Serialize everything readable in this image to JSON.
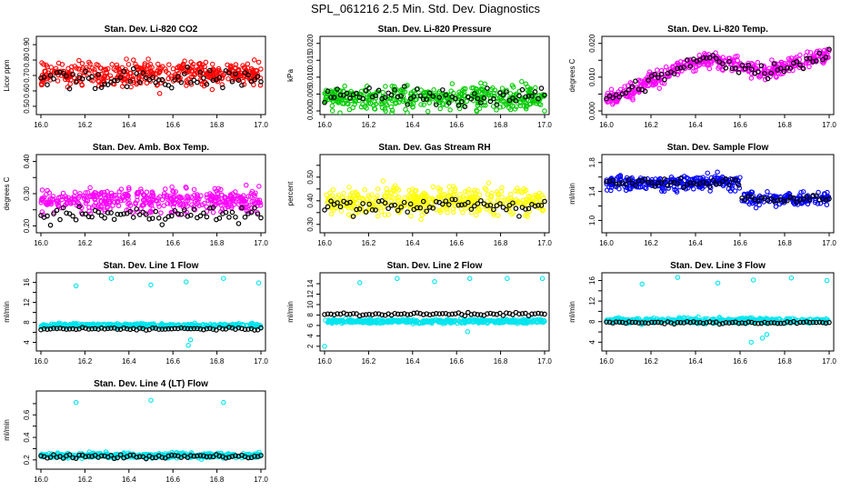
{
  "title": "SPL_061216  2.5 Min. Std. Dev. Diagnostics",
  "chart_data": [
    {
      "type": "scatter",
      "title": "Stan. Dev. Li-820 CO2",
      "ylabel": "Licor ppm",
      "color": "#ff0000",
      "xlim": [
        16.0,
        17.0
      ],
      "ylim": [
        0.47,
        0.93
      ],
      "xticks": [
        16.0,
        16.2,
        16.4,
        16.6,
        16.8,
        17.0
      ],
      "yticks": [
        0.5,
        0.6,
        0.7,
        0.8,
        0.9
      ],
      "yticklabels": [
        "0.50",
        "0.60",
        "0.70",
        "0.80",
        "0.90"
      ],
      "black_mean": 0.68,
      "black_sd": 0.06,
      "color_mean": 0.71,
      "color_sd": 0.07,
      "trend": 0.0
    },
    {
      "type": "scatter",
      "title": "Stan. Dev. Li-820 Pressure",
      "ylabel": "kPa",
      "color": "#00cc00",
      "xlim": [
        16.0,
        17.0
      ],
      "ylim": [
        0.0,
        0.021
      ],
      "xticks": [
        16.0,
        16.2,
        16.4,
        16.6,
        16.8,
        17.0
      ],
      "yticks": [
        0.0,
        0.005,
        0.01,
        0.015,
        0.02
      ],
      "yticklabels": [
        "0.000",
        "0.005",
        "0.010",
        "0.015",
        "0.020"
      ],
      "black_mean": 0.0045,
      "black_sd": 0.002,
      "color_mean": 0.004,
      "color_sd": 0.003,
      "trend": 0.0
    },
    {
      "type": "scatter",
      "title": "Stan. Dev. Li-820 Temp.",
      "ylabel": "degrees C",
      "color": "#ff00ff",
      "xlim": [
        16.0,
        17.0
      ],
      "ylim": [
        0.0,
        0.021
      ],
      "xticks": [
        16.0,
        16.2,
        16.4,
        16.6,
        16.8,
        17.0
      ],
      "yticks": [
        0.0,
        0.005,
        0.01,
        0.015,
        0.02
      ],
      "yticklabels": [
        "0.000",
        "",
        "0.010",
        "",
        "0.020"
      ],
      "black_mean": 0.012,
      "black_sd": 0.002,
      "color_mean": 0.012,
      "color_sd": 0.002,
      "trend": 1.0
    },
    {
      "type": "scatter",
      "title": "Stan. Dev. Amb. Box Temp.",
      "ylabel": "degrees C",
      "color": "#ff00ff",
      "xlim": [
        16.0,
        17.0
      ],
      "ylim": [
        0.19,
        0.41
      ],
      "xticks": [
        16.0,
        16.2,
        16.4,
        16.6,
        16.8,
        17.0
      ],
      "yticks": [
        0.2,
        0.25,
        0.3,
        0.35,
        0.4
      ],
      "yticklabels": [
        "0.20",
        "",
        "0.30",
        "",
        "0.40"
      ],
      "black_mean": 0.235,
      "black_sd": 0.02,
      "color_mean": 0.28,
      "color_sd": 0.03,
      "trend": 0.0
    },
    {
      "type": "scatter",
      "title": "Stan. Dev. Gas Stream RH",
      "ylabel": "percent",
      "color": "#ffff00",
      "xlim": [
        16.0,
        17.0
      ],
      "ylim": [
        0.28,
        0.58
      ],
      "xticks": [
        16.0,
        16.2,
        16.4,
        16.6,
        16.8,
        17.0
      ],
      "yticks": [
        0.3,
        0.35,
        0.4,
        0.45,
        0.5,
        0.55
      ],
      "yticklabels": [
        "0.30",
        "",
        "0.40",
        "",
        "0.50",
        ""
      ],
      "black_mean": 0.38,
      "black_sd": 0.03,
      "color_mean": 0.4,
      "color_sd": 0.05,
      "trend": 0.0
    },
    {
      "type": "scatter",
      "title": "Stan. Dev. Sample Flow",
      "ylabel": "ml/min",
      "color": "#0000ff",
      "xlim": [
        16.0,
        17.0
      ],
      "ylim": [
        0.88,
        1.86
      ],
      "xticks": [
        16.0,
        16.2,
        16.4,
        16.6,
        16.8,
        17.0
      ],
      "yticks": [
        1.0,
        1.2,
        1.4,
        1.6,
        1.8
      ],
      "yticklabels": [
        "1.0",
        "",
        "1.4",
        "",
        "1.8"
      ],
      "black_mean": 1.5,
      "black_sd": 0.05,
      "color_mean": 1.5,
      "color_sd": 0.08,
      "trend": -1.0
    },
    {
      "type": "scatter",
      "title": "Stan. Dev. Line 1 Flow",
      "ylabel": "ml/min",
      "color": "#00e5ee",
      "xlim": [
        16.0,
        17.0
      ],
      "ylim": [
        3.0,
        17.2
      ],
      "xticks": [
        16.0,
        16.2,
        16.4,
        16.6,
        16.8,
        17.0
      ],
      "yticks": [
        4,
        6,
        8,
        10,
        12,
        14,
        16
      ],
      "yticklabels": [
        "4",
        "",
        "8",
        "",
        "12",
        "",
        "16"
      ],
      "black_mean": 6.7,
      "black_sd": 0.2,
      "color_mean": 7.4,
      "color_sd": 0.3,
      "trend": 0.0,
      "outliers": [
        [
          16.16,
          15.3
        ],
        [
          16.32,
          16.8
        ],
        [
          16.5,
          15.5
        ],
        [
          16.66,
          16.1
        ],
        [
          16.83,
          16.8
        ],
        [
          16.99,
          15.9
        ],
        [
          16.67,
          3.4
        ],
        [
          16.68,
          4.5
        ]
      ]
    },
    {
      "type": "scatter",
      "title": "Stan. Dev. Line 2 Flow",
      "ylabel": "ml/min",
      "color": "#00e5ee",
      "xlim": [
        16.0,
        17.0
      ],
      "ylim": [
        1.8,
        15.4
      ],
      "xticks": [
        16.0,
        16.2,
        16.4,
        16.6,
        16.8,
        17.0
      ],
      "yticks": [
        2,
        4,
        6,
        8,
        10,
        12,
        14
      ],
      "yticklabels": [
        "2",
        "4",
        "6",
        "8",
        "10",
        "12",
        "14"
      ],
      "black_mean": 8.2,
      "black_sd": 0.3,
      "color_mean": 6.8,
      "color_sd": 0.3,
      "trend": 0.0,
      "outliers": [
        [
          16.16,
          14.2
        ],
        [
          16.33,
          15.0
        ],
        [
          16.5,
          14.4
        ],
        [
          16.66,
          15.0
        ],
        [
          16.83,
          15.0
        ],
        [
          16.99,
          15.0
        ],
        [
          16.0,
          2.0
        ],
        [
          16.65,
          4.8
        ]
      ]
    },
    {
      "type": "scatter",
      "title": "Stan. Dev. Line 3 Flow",
      "ylabel": "ml/min",
      "color": "#00e5ee",
      "xlim": [
        16.0,
        17.0
      ],
      "ylim": [
        3.0,
        16.8
      ],
      "xticks": [
        16.0,
        16.2,
        16.4,
        16.6,
        16.8,
        17.0
      ],
      "yticks": [
        4,
        6,
        8,
        10,
        12,
        14,
        16
      ],
      "yticklabels": [
        "4",
        "",
        "8",
        "",
        "12",
        "",
        "16"
      ],
      "black_mean": 7.8,
      "black_sd": 0.2,
      "color_mean": 8.2,
      "color_sd": 0.4,
      "trend": 0.0,
      "outliers": [
        [
          16.16,
          15.3
        ],
        [
          16.32,
          16.6
        ],
        [
          16.5,
          15.5
        ],
        [
          16.66,
          16.1
        ],
        [
          16.83,
          16.5
        ],
        [
          16.99,
          16.0
        ],
        [
          16.65,
          4.0
        ],
        [
          16.7,
          4.8
        ],
        [
          16.72,
          5.5
        ]
      ]
    },
    {
      "type": "scatter",
      "title": "Stan. Dev. Line 4 (LT) Flow",
      "ylabel": "ml/min",
      "color": "#00e5ee",
      "xlim": [
        16.0,
        17.0
      ],
      "ylim": [
        0.15,
        0.78
      ],
      "xticks": [
        16.0,
        16.2,
        16.4,
        16.6,
        16.8,
        17.0
      ],
      "yticks": [
        0.2,
        0.3,
        0.4,
        0.5,
        0.6,
        0.7
      ],
      "yticklabels": [
        "0.2",
        "",
        "0.4",
        "",
        "0.6",
        ""
      ],
      "black_mean": 0.23,
      "black_sd": 0.015,
      "color_mean": 0.24,
      "color_sd": 0.02,
      "trend": 0.0,
      "outliers": [
        [
          16.16,
          0.71
        ],
        [
          16.5,
          0.73
        ],
        [
          16.83,
          0.71
        ]
      ]
    }
  ]
}
